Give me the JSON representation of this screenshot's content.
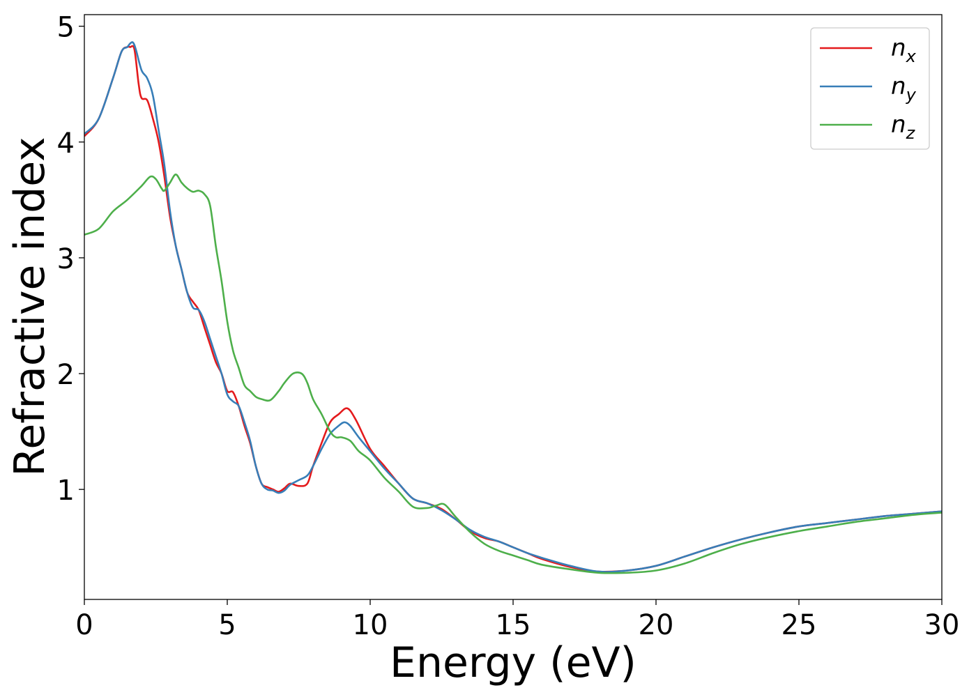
{
  "chart_data": {
    "type": "line",
    "title": "",
    "xlabel": "Energy (eV)",
    "ylabel": "Refractive index",
    "xlim": [
      0,
      30
    ],
    "ylim": [
      0.05,
      5.1
    ],
    "xticks": [
      0,
      5,
      10,
      15,
      20,
      25,
      30
    ],
    "yticks": [
      1,
      2,
      3,
      4,
      5
    ],
    "grid": false,
    "legend_position": "top-right",
    "series": [
      {
        "name": "n_x",
        "legend_base": "n",
        "legend_sub": "x",
        "color": "#e41a1c",
        "x": [
          0,
          0.5,
          1.0,
          1.3,
          1.5,
          1.6,
          1.75,
          1.9,
          2.0,
          2.2,
          2.4,
          2.6,
          2.8,
          3.0,
          3.2,
          3.4,
          3.6,
          3.8,
          4.0,
          4.2,
          4.4,
          4.6,
          4.8,
          5.0,
          5.2,
          5.4,
          5.6,
          5.8,
          6.0,
          6.2,
          6.4,
          6.6,
          6.8,
          7.0,
          7.2,
          7.5,
          7.8,
          8.0,
          8.3,
          8.6,
          8.9,
          9.2,
          9.5,
          10.0,
          10.5,
          11.0,
          11.5,
          12.0,
          12.5,
          13.0,
          13.5,
          14.0,
          14.5,
          15.0,
          15.5,
          16.0,
          17.0,
          18.0,
          19.0,
          20.0,
          21.0,
          22.0,
          23.0,
          24.0,
          25.0,
          26.0,
          27.0,
          28.0,
          29.0,
          30.0
        ],
        "values": [
          4.05,
          4.2,
          4.55,
          4.78,
          4.82,
          4.82,
          4.8,
          4.5,
          4.38,
          4.36,
          4.2,
          4.0,
          3.7,
          3.35,
          3.1,
          2.9,
          2.7,
          2.62,
          2.55,
          2.4,
          2.25,
          2.1,
          2.0,
          1.85,
          1.84,
          1.72,
          1.55,
          1.4,
          1.2,
          1.05,
          1.02,
          1.0,
          0.98,
          1.01,
          1.05,
          1.03,
          1.05,
          1.2,
          1.4,
          1.58,
          1.65,
          1.7,
          1.6,
          1.35,
          1.2,
          1.05,
          0.92,
          0.88,
          0.83,
          0.74,
          0.64,
          0.58,
          0.55,
          0.5,
          0.45,
          0.4,
          0.33,
          0.29,
          0.3,
          0.34,
          0.42,
          0.5,
          0.57,
          0.63,
          0.68,
          0.71,
          0.74,
          0.77,
          0.79,
          0.81
        ]
      },
      {
        "name": "n_y",
        "legend_base": "n",
        "legend_sub": "y",
        "color": "#377eb8",
        "x": [
          0,
          0.5,
          1.0,
          1.3,
          1.5,
          1.6,
          1.7,
          1.8,
          2.0,
          2.2,
          2.4,
          2.6,
          2.8,
          3.0,
          3.2,
          3.4,
          3.6,
          3.8,
          4.0,
          4.2,
          4.4,
          4.6,
          4.8,
          5.0,
          5.2,
          5.4,
          5.6,
          5.8,
          6.0,
          6.2,
          6.4,
          6.6,
          6.8,
          7.0,
          7.2,
          7.5,
          7.8,
          8.0,
          8.3,
          8.6,
          8.9,
          9.1,
          9.3,
          9.6,
          10.0,
          10.5,
          11.0,
          11.5,
          12.0,
          12.5,
          13.0,
          13.5,
          14.0,
          14.5,
          15.0,
          15.5,
          16.0,
          17.0,
          18.0,
          19.0,
          20.0,
          21.0,
          22.0,
          23.0,
          24.0,
          25.0,
          26.0,
          27.0,
          28.0,
          29.0,
          30.0
        ],
        "values": [
          4.07,
          4.2,
          4.55,
          4.78,
          4.82,
          4.85,
          4.86,
          4.8,
          4.62,
          4.55,
          4.4,
          4.1,
          3.8,
          3.4,
          3.1,
          2.9,
          2.7,
          2.57,
          2.55,
          2.45,
          2.3,
          2.15,
          2.0,
          1.82,
          1.76,
          1.72,
          1.58,
          1.42,
          1.2,
          1.05,
          1.0,
          0.99,
          0.97,
          0.99,
          1.04,
          1.08,
          1.12,
          1.2,
          1.35,
          1.48,
          1.55,
          1.58,
          1.55,
          1.45,
          1.33,
          1.18,
          1.05,
          0.92,
          0.88,
          0.82,
          0.74,
          0.65,
          0.59,
          0.55,
          0.5,
          0.45,
          0.41,
          0.34,
          0.29,
          0.3,
          0.34,
          0.42,
          0.5,
          0.57,
          0.63,
          0.68,
          0.71,
          0.74,
          0.77,
          0.79,
          0.81
        ]
      },
      {
        "name": "n_z",
        "legend_base": "n",
        "legend_sub": "z",
        "color": "#4daf4a",
        "x": [
          0,
          0.5,
          1.0,
          1.5,
          2.0,
          2.3,
          2.5,
          2.7,
          2.8,
          3.0,
          3.2,
          3.4,
          3.6,
          3.8,
          4.0,
          4.2,
          4.4,
          4.6,
          4.8,
          5.0,
          5.2,
          5.4,
          5.6,
          5.8,
          6.0,
          6.2,
          6.5,
          6.8,
          7.0,
          7.3,
          7.6,
          7.8,
          8.0,
          8.3,
          8.6,
          8.8,
          9.0,
          9.3,
          9.6,
          10.0,
          10.5,
          11.0,
          11.5,
          12.0,
          12.3,
          12.6,
          13.0,
          13.5,
          14.0,
          14.5,
          15.0,
          15.5,
          16.0,
          17.0,
          18.0,
          19.0,
          20.0,
          21.0,
          22.0,
          23.0,
          24.0,
          25.0,
          26.0,
          27.0,
          28.0,
          29.0,
          30.0
        ],
        "values": [
          3.2,
          3.25,
          3.4,
          3.5,
          3.62,
          3.7,
          3.68,
          3.6,
          3.58,
          3.65,
          3.72,
          3.65,
          3.6,
          3.57,
          3.58,
          3.55,
          3.45,
          3.1,
          2.8,
          2.45,
          2.2,
          2.05,
          1.9,
          1.85,
          1.8,
          1.78,
          1.77,
          1.85,
          1.92,
          2.0,
          2.0,
          1.92,
          1.78,
          1.65,
          1.5,
          1.45,
          1.45,
          1.42,
          1.33,
          1.25,
          1.1,
          0.98,
          0.85,
          0.84,
          0.86,
          0.87,
          0.76,
          0.63,
          0.53,
          0.47,
          0.43,
          0.39,
          0.35,
          0.31,
          0.28,
          0.28,
          0.3,
          0.36,
          0.45,
          0.53,
          0.59,
          0.64,
          0.68,
          0.72,
          0.75,
          0.78,
          0.8
        ]
      }
    ]
  }
}
